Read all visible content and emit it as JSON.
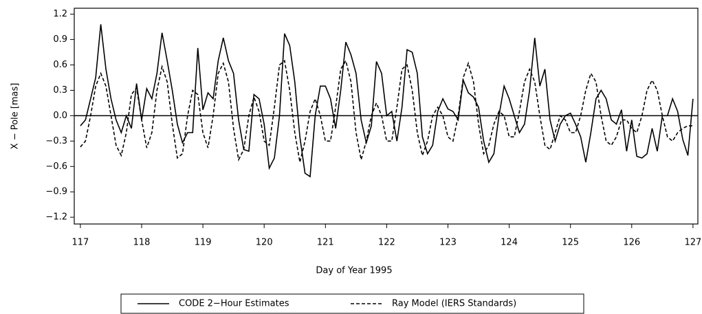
{
  "chart_data": {
    "type": "line",
    "xlabel": "Day of Year 1995",
    "ylabel": "X − Pole [mas]",
    "x": [
      117,
      117.083,
      117.167,
      117.25,
      117.333,
      117.417,
      117.5,
      117.583,
      117.667,
      117.75,
      117.833,
      117.917,
      118,
      118.083,
      118.167,
      118.25,
      118.333,
      118.417,
      118.5,
      118.583,
      118.667,
      118.75,
      118.833,
      118.917,
      119,
      119.083,
      119.167,
      119.25,
      119.333,
      119.417,
      119.5,
      119.583,
      119.667,
      119.75,
      119.833,
      119.917,
      120,
      120.083,
      120.167,
      120.25,
      120.333,
      120.417,
      120.5,
      120.583,
      120.667,
      120.75,
      120.833,
      120.917,
      121,
      121.083,
      121.167,
      121.25,
      121.333,
      121.417,
      121.5,
      121.583,
      121.667,
      121.75,
      121.833,
      121.917,
      122,
      122.083,
      122.167,
      122.25,
      122.333,
      122.417,
      122.5,
      122.583,
      122.667,
      122.75,
      122.833,
      122.917,
      123,
      123.083,
      123.167,
      123.25,
      123.333,
      123.417,
      123.5,
      123.583,
      123.667,
      123.75,
      123.833,
      123.917,
      124,
      124.083,
      124.167,
      124.25,
      124.333,
      124.417,
      124.5,
      124.583,
      124.667,
      124.75,
      124.833,
      124.917,
      125,
      125.083,
      125.167,
      125.25,
      125.333,
      125.417,
      125.5,
      125.583,
      125.667,
      125.75,
      125.833,
      125.917,
      126,
      126.083,
      126.167,
      126.25,
      126.333,
      126.417,
      126.5,
      126.583,
      126.667,
      126.75,
      126.833,
      126.917,
      127
    ],
    "series": [
      {
        "name": "CODE 2−Hour Estimates",
        "color": "#000000",
        "line_style": "solid",
        "values": [
          -0.12,
          -0.05,
          0.2,
          0.45,
          1.08,
          0.55,
          0.2,
          -0.05,
          -0.2,
          0.0,
          -0.15,
          0.38,
          -0.05,
          0.32,
          0.2,
          0.5,
          0.98,
          0.65,
          0.3,
          -0.1,
          -0.32,
          -0.2,
          -0.2,
          0.8,
          0.07,
          0.27,
          0.2,
          0.65,
          0.92,
          0.65,
          0.5,
          -0.05,
          -0.4,
          -0.42,
          0.25,
          0.2,
          -0.1,
          -0.62,
          -0.5,
          0.0,
          0.97,
          0.83,
          0.4,
          -0.25,
          -0.68,
          -0.72,
          0.0,
          0.35,
          0.35,
          0.2,
          -0.15,
          0.3,
          0.87,
          0.72,
          0.5,
          -0.05,
          -0.32,
          -0.12,
          0.64,
          0.5,
          0.0,
          0.05,
          -0.3,
          0.1,
          0.78,
          0.75,
          0.5,
          -0.25,
          -0.45,
          -0.35,
          0.05,
          0.2,
          0.08,
          0.05,
          -0.05,
          0.42,
          0.27,
          0.22,
          0.1,
          -0.3,
          -0.55,
          -0.45,
          0.0,
          0.35,
          0.2,
          0.0,
          -0.2,
          -0.1,
          0.3,
          0.92,
          0.35,
          0.55,
          -0.05,
          -0.3,
          -0.1,
          0.0,
          0.03,
          -0.1,
          -0.25,
          -0.55,
          -0.2,
          0.2,
          0.3,
          0.2,
          -0.05,
          -0.1,
          0.07,
          -0.42,
          -0.05,
          -0.48,
          -0.5,
          -0.45,
          -0.15,
          -0.42,
          0.0,
          0.0,
          0.2,
          0.05,
          -0.28,
          -0.47,
          0.2
        ]
      },
      {
        "name": "Ray Model (IERS Standards)",
        "color": "#000000",
        "line_style": "dashed",
        "values": [
          -0.37,
          -0.3,
          0.0,
          0.35,
          0.5,
          0.35,
          0.0,
          -0.35,
          -0.47,
          -0.2,
          0.25,
          0.33,
          -0.05,
          -0.38,
          -0.2,
          0.3,
          0.58,
          0.4,
          -0.1,
          -0.5,
          -0.45,
          0.0,
          0.3,
          0.25,
          -0.2,
          -0.38,
          0.0,
          0.5,
          0.62,
          0.4,
          -0.15,
          -0.52,
          -0.4,
          0.0,
          0.22,
          0.05,
          -0.3,
          -0.35,
          0.1,
          0.6,
          0.65,
          0.3,
          -0.2,
          -0.55,
          -0.3,
          0.05,
          0.2,
          0.0,
          -0.3,
          -0.3,
          0.1,
          0.55,
          0.65,
          0.4,
          -0.2,
          -0.52,
          -0.3,
          0.0,
          0.15,
          0.0,
          -0.3,
          -0.3,
          0.1,
          0.55,
          0.6,
          0.3,
          -0.2,
          -0.47,
          -0.3,
          0.0,
          0.1,
          0.0,
          -0.25,
          -0.3,
          0.0,
          0.45,
          0.62,
          0.4,
          -0.1,
          -0.45,
          -0.35,
          -0.1,
          0.05,
          0.0,
          -0.25,
          -0.25,
          0.05,
          0.4,
          0.55,
          0.4,
          0.0,
          -0.35,
          -0.4,
          -0.2,
          0.0,
          -0.05,
          -0.2,
          -0.2,
          0.0,
          0.3,
          0.5,
          0.4,
          0.0,
          -0.3,
          -0.35,
          -0.25,
          -0.05,
          -0.05,
          -0.15,
          -0.2,
          0.0,
          0.3,
          0.42,
          0.3,
          0.0,
          -0.25,
          -0.3,
          -0.2,
          -0.15,
          -0.12,
          -0.12
        ]
      }
    ],
    "xlim": [
      116.9,
      127.08
    ],
    "xticks": [
      117,
      118,
      119,
      120,
      121,
      122,
      123,
      124,
      125,
      126,
      127
    ],
    "ylim": [
      -1.28,
      1.27
    ],
    "yticks": [
      {
        "value": -1.2,
        "label": "−1.2"
      },
      {
        "value": -0.9,
        "label": "−0.9"
      },
      {
        "value": -0.6,
        "label": "−0.6"
      },
      {
        "value": -0.3,
        "label": "−0.3"
      },
      {
        "value": 0,
        "label": "0.0"
      },
      0.3,
      0.6,
      0.9,
      1.2
    ],
    "zero_line": true,
    "legend": "bottom"
  }
}
